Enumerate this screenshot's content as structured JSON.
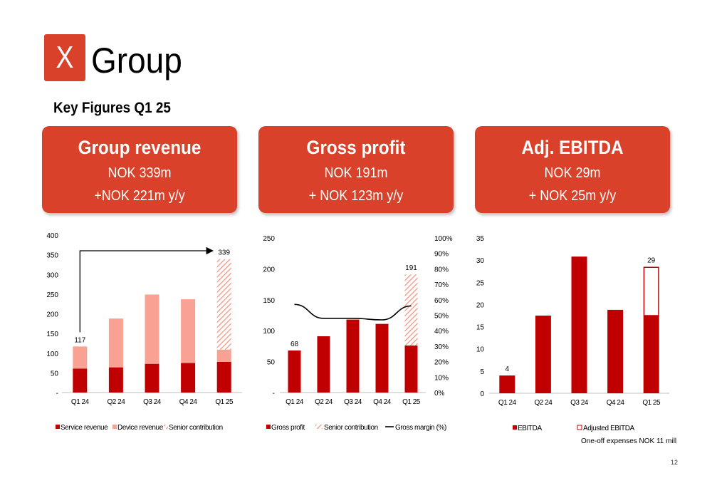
{
  "brand": {
    "logo_letter": "X",
    "name": "Group"
  },
  "subtitle": "Key Figures Q1 25",
  "cards": [
    {
      "title": "Group revenue",
      "line1": "NOK 339m",
      "line2": "+NOK 221m y/y"
    },
    {
      "title": "Gross profit",
      "line1": "NOK 191m",
      "line2": "+ NOK 123m y/y"
    },
    {
      "title": "Adj. EBITDA",
      "line1": "NOK 29m",
      "line2": "+ NOK 25m y/y"
    }
  ],
  "colors": {
    "dark_red": "#c00000",
    "light_red": "#f9a193",
    "card": "#d9412b",
    "hatch": "#f4907c"
  },
  "chart_data": [
    {
      "type": "bar",
      "stacked": true,
      "categories": [
        "Q1 24",
        "Q2 24",
        "Q3 24",
        "Q4 24",
        "Q1 25"
      ],
      "y_ticks": [
        "-",
        "50",
        "100",
        "150",
        "200",
        "250",
        "300",
        "350",
        "400"
      ],
      "ylim": [
        0,
        400
      ],
      "series": [
        {
          "name": "Service revenue",
          "values": [
            61,
            64,
            73,
            75,
            78
          ]
        },
        {
          "name": "Device revenue",
          "values": [
            56,
            124,
            176,
            162,
            31
          ]
        },
        {
          "name": "Senior contribution",
          "values": [
            0,
            0,
            0,
            0,
            230
          ]
        }
      ],
      "data_labels": [
        "117",
        "",
        "",
        "",
        "339"
      ],
      "annotation": "arrow from Q1 24 to Q1 25",
      "legend_position": "bottom"
    },
    {
      "type": "bar",
      "stacked": true,
      "categories": [
        "Q1 24",
        "Q2 24",
        "Q3 24",
        "Q4 24",
        "Q1 25"
      ],
      "y_ticks": [
        "-",
        "50",
        "100",
        "150",
        "200",
        "250"
      ],
      "ylim": [
        0,
        250
      ],
      "y2_ticks": [
        "0%",
        "10%",
        "20%",
        "30%",
        "40%",
        "50%",
        "60%",
        "70%",
        "80%",
        "90%",
        "100%"
      ],
      "y2lim": [
        0,
        100
      ],
      "series": [
        {
          "name": "Gross profit",
          "values": [
            68,
            91,
            118,
            111,
            76
          ]
        },
        {
          "name": "Senior contribution",
          "values": [
            0,
            0,
            0,
            0,
            115
          ]
        },
        {
          "name": "Gross margin (%)",
          "type": "line",
          "axis": "right",
          "values": [
            57,
            48,
            48,
            47,
            56
          ]
        }
      ],
      "data_labels": [
        "68",
        "",
        "",
        "",
        "191"
      ],
      "legend_position": "bottom"
    },
    {
      "type": "bar",
      "stacked": true,
      "categories": [
        "Q1 24",
        "Q2 24",
        "Q3 24",
        "Q4 24",
        "Q1 25"
      ],
      "y_ticks": [
        "0",
        "5",
        "10",
        "15",
        "20",
        "25",
        "30",
        "35"
      ],
      "ylim": [
        0,
        35
      ],
      "series": [
        {
          "name": "EBITDA",
          "values": [
            4,
            17.5,
            30.8,
            18.8,
            17.5
          ]
        },
        {
          "name": "Adjusted EBITDA",
          "values": [
            0,
            0,
            0,
            0,
            11
          ]
        }
      ],
      "data_labels": [
        "4",
        "",
        "",
        "",
        "29"
      ],
      "note": "One-off expenses NOK 11 mill",
      "legend_position": "bottom"
    }
  ],
  "page_number": "12"
}
